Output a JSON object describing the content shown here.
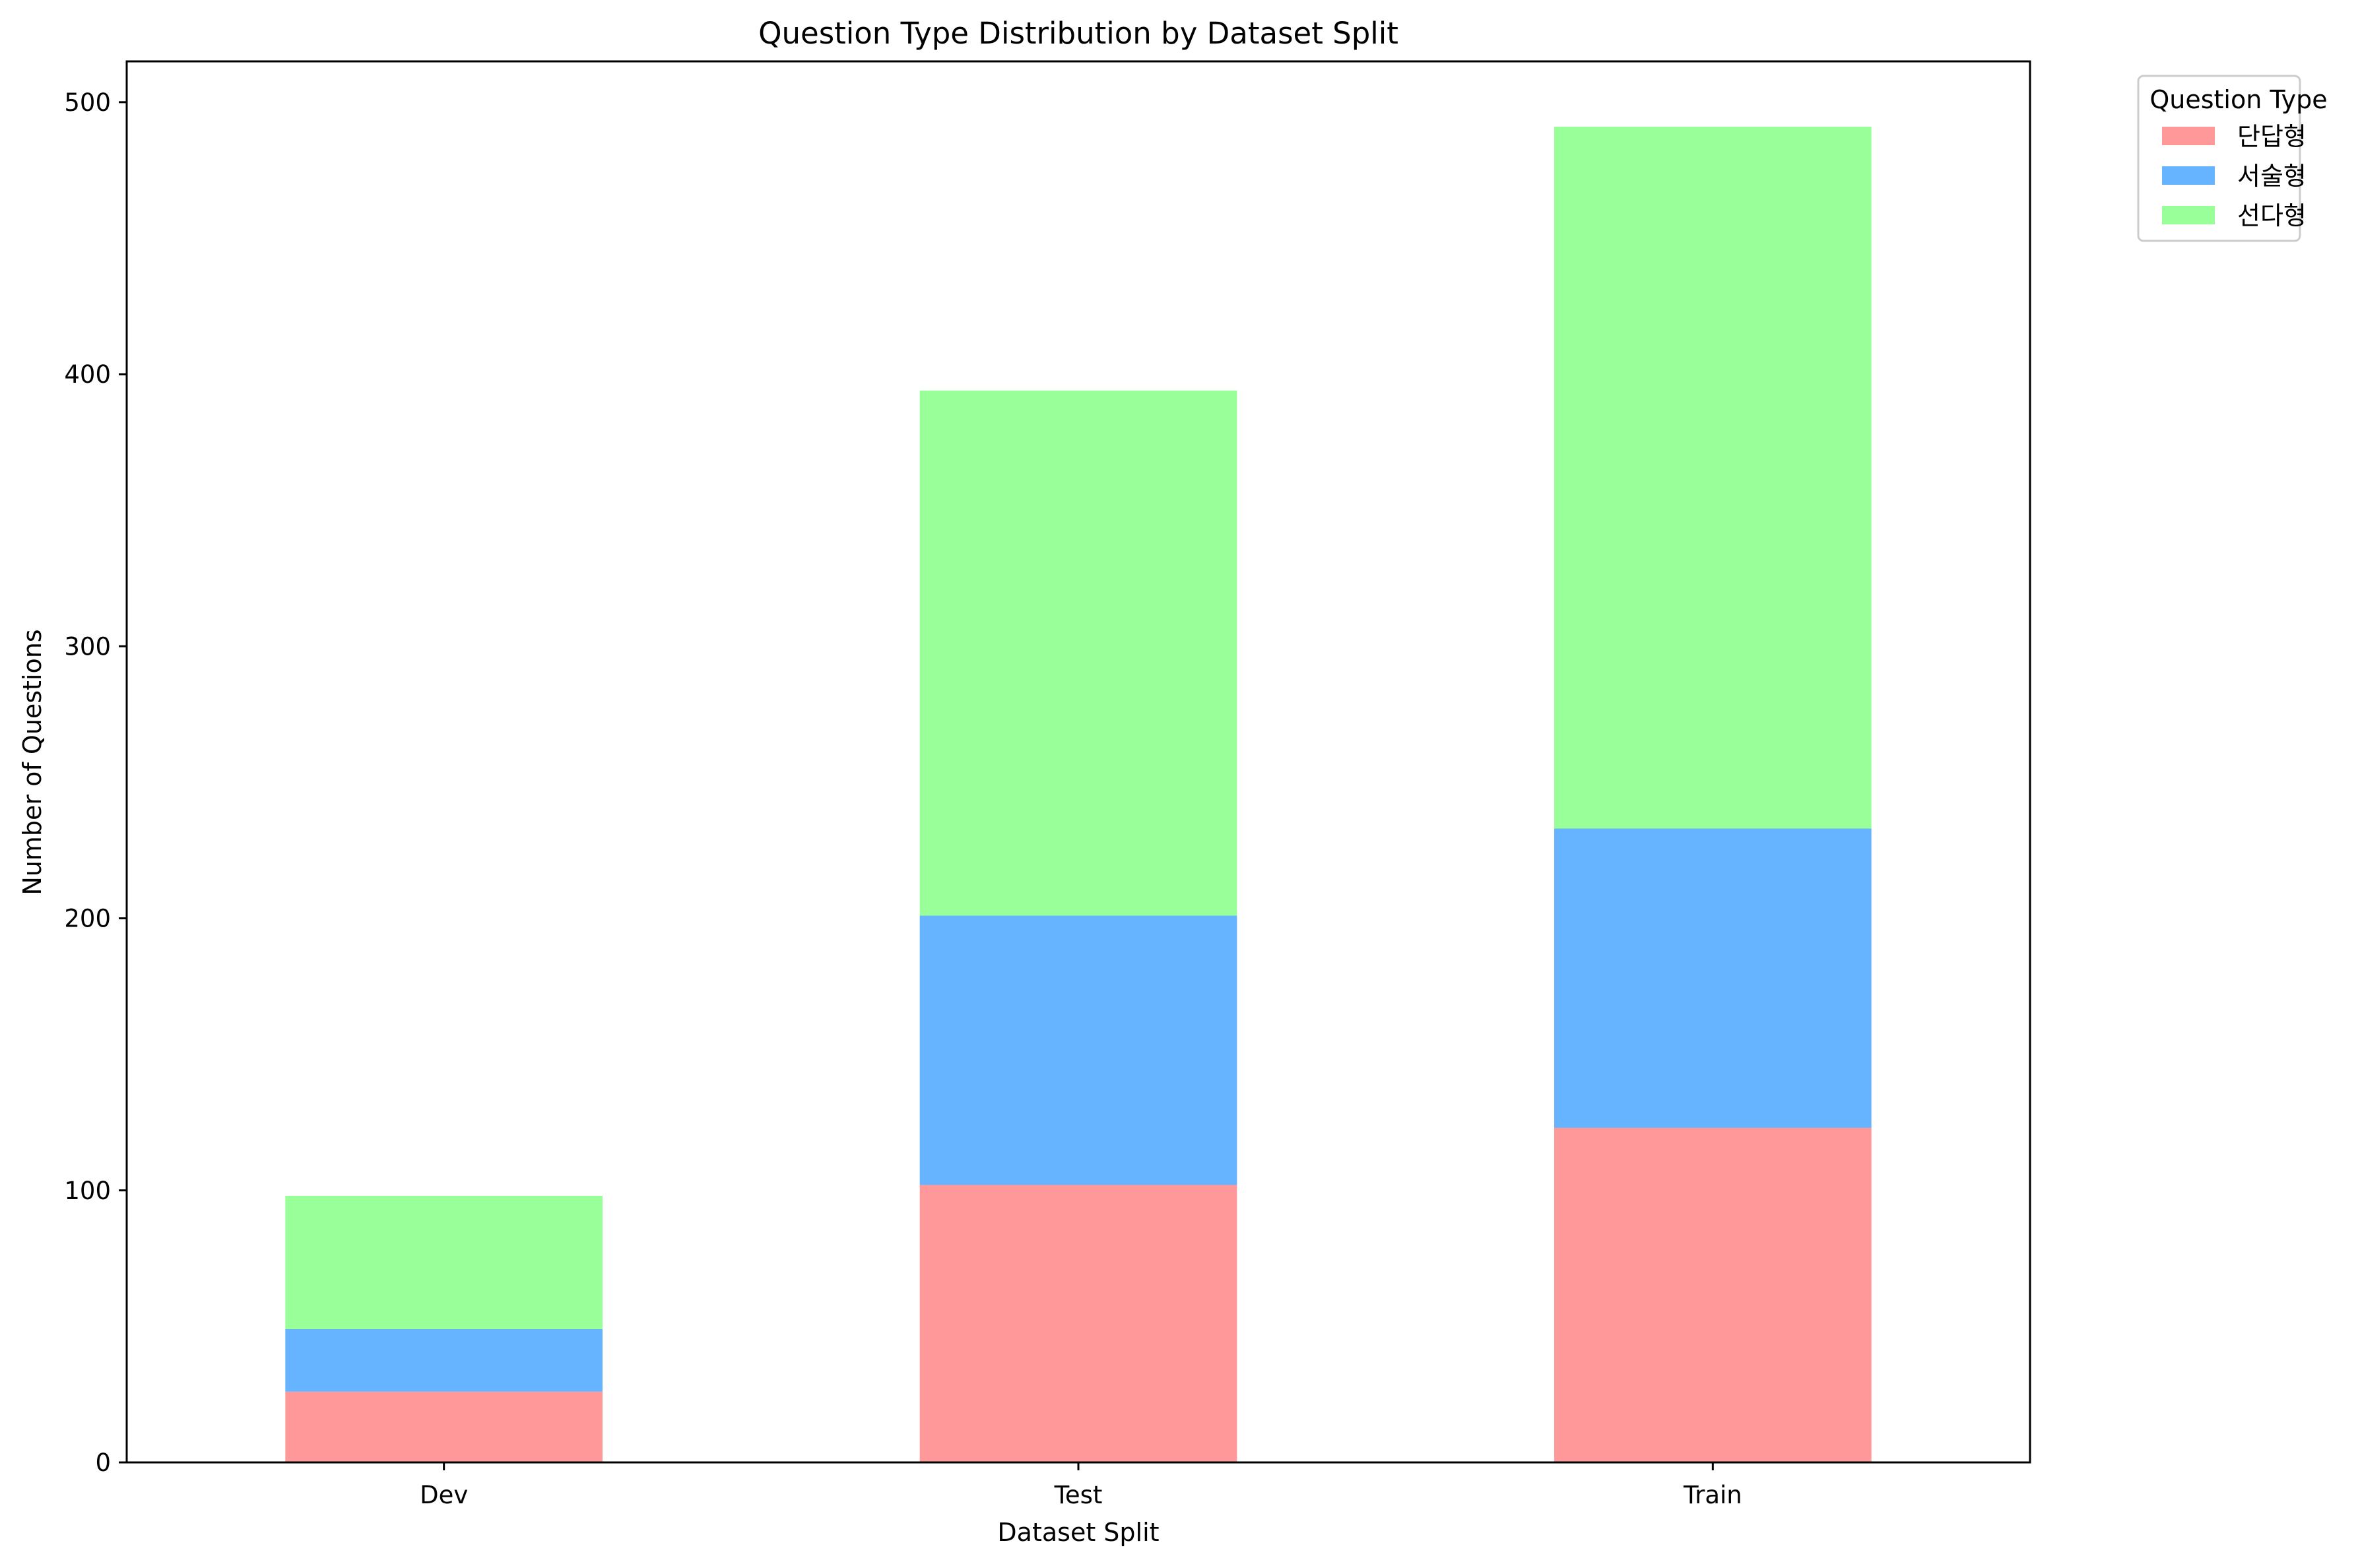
{
  "chart_data": {
    "type": "bar",
    "stacked": true,
    "title": "Question Type Distribution by Dataset Split",
    "xlabel": "Dataset Split",
    "ylabel": "Number of Questions",
    "categories": [
      "Dev",
      "Test",
      "Train"
    ],
    "ylim": [
      0,
      515
    ],
    "yticks": [
      0,
      100,
      200,
      300,
      400,
      500
    ],
    "grid": false,
    "legend": {
      "title": "Question Type",
      "placement": "outside-top-right"
    },
    "series": [
      {
        "name": "단답형",
        "color": "#ff9999",
        "values": [
          26,
          102,
          123
        ]
      },
      {
        "name": "서술형",
        "color": "#66b3ff",
        "values": [
          23,
          99,
          110
        ]
      },
      {
        "name": "선다형",
        "color": "#99ff99",
        "values": [
          49,
          193,
          258
        ]
      }
    ]
  }
}
